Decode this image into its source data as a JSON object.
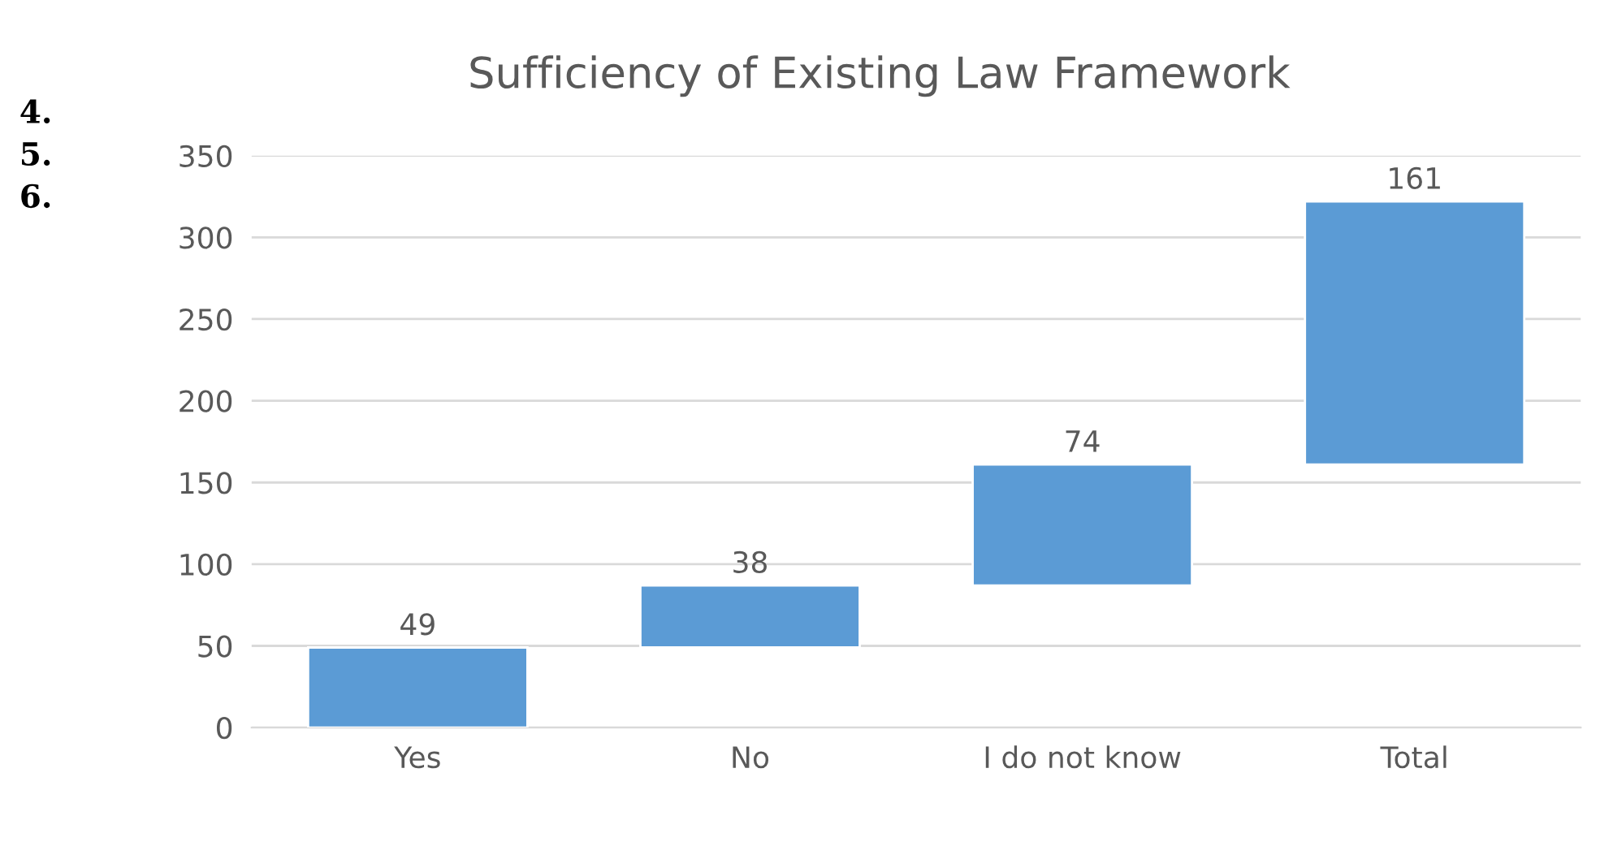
{
  "chart_data": {
    "type": "bar",
    "title": "Sufficiency of Existing Law Framework",
    "categories": [
      "Yes",
      "No",
      "I do not know",
      "Total"
    ],
    "values": [
      49,
      38,
      74,
      161
    ],
    "base": [
      0,
      49,
      87,
      161
    ],
    "color": "#5b9bd5",
    "ylim": [
      0,
      350
    ],
    "yticks": [
      0,
      50,
      100,
      150,
      200,
      250,
      300,
      350
    ],
    "grid": "y",
    "data_labels": true,
    "annotations": [
      "4.",
      "5.",
      "6."
    ]
  }
}
